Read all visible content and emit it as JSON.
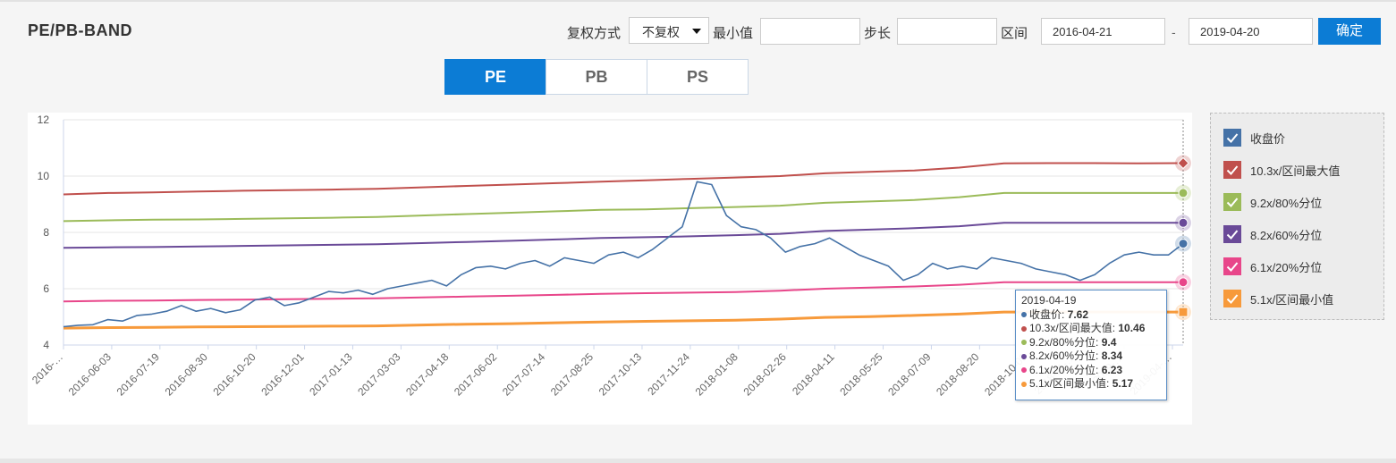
{
  "header": {
    "title": "PE/PB-BAND",
    "adjust_label": "复权方式",
    "adjust_value": "不复权",
    "min_label": "最小值",
    "min_value": "",
    "step_label": "步长",
    "step_value": "",
    "range_label": "区间",
    "start_date": "2016-04-21",
    "dash": "-",
    "end_date": "2019-04-20",
    "confirm_label": "确定"
  },
  "tabs": [
    {
      "label": "PE",
      "active": true
    },
    {
      "label": "PB",
      "active": false
    },
    {
      "label": "PS",
      "active": false
    }
  ],
  "legend": [
    {
      "label": "收盘价",
      "color": "#4572a7"
    },
    {
      "label": "10.3x/区间最大值",
      "color": "#c0504d"
    },
    {
      "label": "9.2x/80%分位",
      "color": "#9bbb59"
    },
    {
      "label": "8.2x/60%分位",
      "color": "#6a4a98"
    },
    {
      "label": "6.1x/20%分位",
      "color": "#e8468a"
    },
    {
      "label": "5.1x/区间最小值",
      "color": "#f79a3b"
    }
  ],
  "tooltip": {
    "date": "2019-04-19",
    "rows": [
      {
        "label": "收盘价: ",
        "value": "7.62",
        "color": "#4572a7"
      },
      {
        "label": "10.3x/区间最大值: ",
        "value": "10.46",
        "color": "#c0504d"
      },
      {
        "label": "9.2x/80%分位: ",
        "value": "9.4",
        "color": "#9bbb59"
      },
      {
        "label": "8.2x/60%分位: ",
        "value": "8.34",
        "color": "#6a4a98"
      },
      {
        "label": "6.1x/20%分位: ",
        "value": "6.23",
        "color": "#e8468a"
      },
      {
        "label": "5.1x/区间最小值: ",
        "value": "5.17",
        "color": "#f79a3b"
      }
    ]
  },
  "chart_data": {
    "type": "line",
    "ylim": [
      4,
      12
    ],
    "yticks": [
      4,
      6,
      8,
      10,
      12
    ],
    "grid": true,
    "legend_position": "right",
    "xticks": [
      "2016-…",
      "2016-06-03",
      "2016-07-19",
      "2016-08-30",
      "2016-10-20",
      "2016-12-01",
      "2017-01-13",
      "2017-03-03",
      "2017-04-18",
      "2017-06-02",
      "2017-07-14",
      "2017-08-25",
      "2017-10-13",
      "2017-11-24",
      "2018-01-08",
      "2018-02-26",
      "2018-04-11",
      "2018-05-25",
      "2018-07-09",
      "2018-08-20",
      "2018-10-09",
      "2018-11-…",
      "2019-…",
      "2019-04-…"
    ],
    "series": [
      {
        "name": "收盘价",
        "color": "#4572a7",
        "width": 1.6,
        "values": [
          4.65,
          4.7,
          4.72,
          4.9,
          4.85,
          5.05,
          5.1,
          5.2,
          5.4,
          5.2,
          5.3,
          5.15,
          5.25,
          5.6,
          5.7,
          5.4,
          5.5,
          5.7,
          5.9,
          5.85,
          5.95,
          5.8,
          6.0,
          6.1,
          6.2,
          6.3,
          6.1,
          6.5,
          6.75,
          6.8,
          6.7,
          6.9,
          7.0,
          6.8,
          7.1,
          7.0,
          6.9,
          7.2,
          7.3,
          7.1,
          7.4,
          7.8,
          8.2,
          9.8,
          9.7,
          8.6,
          8.2,
          8.1,
          7.8,
          7.3,
          7.5,
          7.6,
          7.8,
          7.5,
          7.2,
          7.0,
          6.8,
          6.3,
          6.5,
          6.9,
          6.7,
          6.8,
          6.7,
          7.1,
          7.0,
          6.9,
          6.7,
          6.6,
          6.5,
          6.3,
          6.5,
          6.9,
          7.2,
          7.3,
          7.2,
          7.2,
          7.6
        ]
      },
      {
        "name": "10.3x/区间最大值",
        "color": "#c0504d",
        "width": 2,
        "values": [
          9.35,
          9.4,
          9.42,
          9.45,
          9.48,
          9.5,
          9.52,
          9.55,
          9.6,
          9.65,
          9.7,
          9.75,
          9.8,
          9.85,
          9.9,
          9.95,
          10.0,
          10.1,
          10.15,
          10.2,
          10.3,
          10.45,
          10.46,
          10.46,
          10.45,
          10.46
        ]
      },
      {
        "name": "9.2x/80%分位",
        "color": "#9bbb59",
        "width": 2,
        "values": [
          8.4,
          8.43,
          8.45,
          8.46,
          8.48,
          8.5,
          8.52,
          8.55,
          8.6,
          8.65,
          8.7,
          8.75,
          8.8,
          8.82,
          8.86,
          8.9,
          8.95,
          9.05,
          9.1,
          9.15,
          9.25,
          9.4,
          9.4,
          9.4,
          9.4,
          9.4
        ]
      },
      {
        "name": "8.2x/60%分位",
        "color": "#6a4a98",
        "width": 2,
        "values": [
          7.45,
          7.47,
          7.48,
          7.5,
          7.52,
          7.54,
          7.56,
          7.58,
          7.62,
          7.66,
          7.7,
          7.75,
          7.8,
          7.83,
          7.86,
          7.9,
          7.95,
          8.05,
          8.1,
          8.15,
          8.22,
          8.34,
          8.34,
          8.34,
          8.34,
          8.34
        ]
      },
      {
        "name": "6.1x/20%分位",
        "color": "#e8468a",
        "width": 2,
        "values": [
          5.55,
          5.57,
          5.58,
          5.6,
          5.61,
          5.63,
          5.64,
          5.66,
          5.69,
          5.72,
          5.75,
          5.78,
          5.82,
          5.84,
          5.86,
          5.88,
          5.93,
          6.0,
          6.04,
          6.08,
          6.14,
          6.23,
          6.23,
          6.23,
          6.23,
          6.23
        ]
      },
      {
        "name": "5.1x/区间最小值",
        "color": "#f79a3b",
        "width": 3,
        "values": [
          4.6,
          4.62,
          4.63,
          4.64,
          4.65,
          4.66,
          4.67,
          4.68,
          4.71,
          4.74,
          4.76,
          4.79,
          4.82,
          4.84,
          4.86,
          4.88,
          4.92,
          4.98,
          5.01,
          5.05,
          5.1,
          5.17,
          5.17,
          5.17,
          5.17,
          5.17
        ]
      }
    ]
  }
}
